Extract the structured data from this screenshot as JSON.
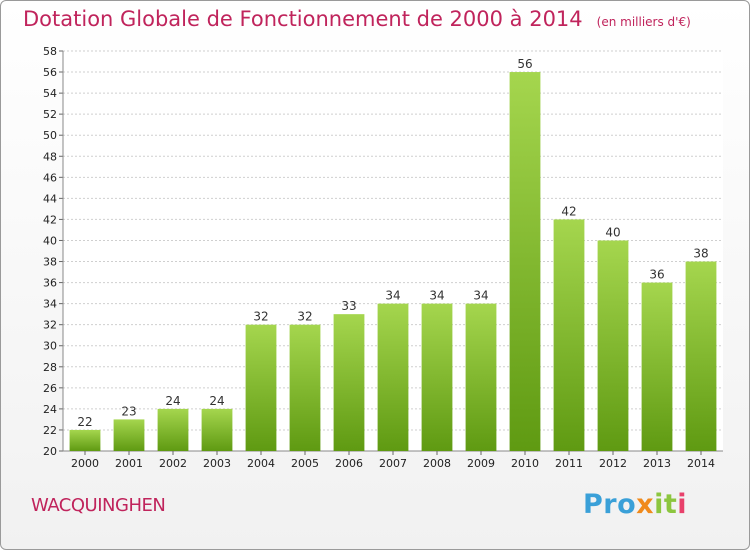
{
  "title": "Dotation Globale de Fonctionnement de 2000 à 2014",
  "subtitle": "(en milliers d'€)",
  "commune": "WACQUINGHEN",
  "logo": {
    "part1": "Pro",
    "part2": "x",
    "part3": "it",
    "part4": "i"
  },
  "colors": {
    "title": "#c0245c",
    "bar_light": "#a5d64e",
    "bar_dark": "#5f9a12",
    "grid": "#cfcfcf"
  },
  "chart_data": {
    "type": "bar",
    "title": "Dotation Globale de Fonctionnement de 2000 à 2014",
    "subtitle": "(en milliers d'€)",
    "xlabel": "",
    "ylabel": "",
    "categories": [
      "2000",
      "2001",
      "2002",
      "2003",
      "2004",
      "2005",
      "2006",
      "2007",
      "2008",
      "2009",
      "2010",
      "2011",
      "2012",
      "2013",
      "2014"
    ],
    "values": [
      22,
      23,
      24,
      24,
      32,
      32,
      33,
      34,
      34,
      34,
      56,
      42,
      40,
      36,
      38
    ],
    "ylim": [
      20,
      58
    ],
    "ytick_step": 2,
    "grid": true,
    "legend": "none"
  }
}
